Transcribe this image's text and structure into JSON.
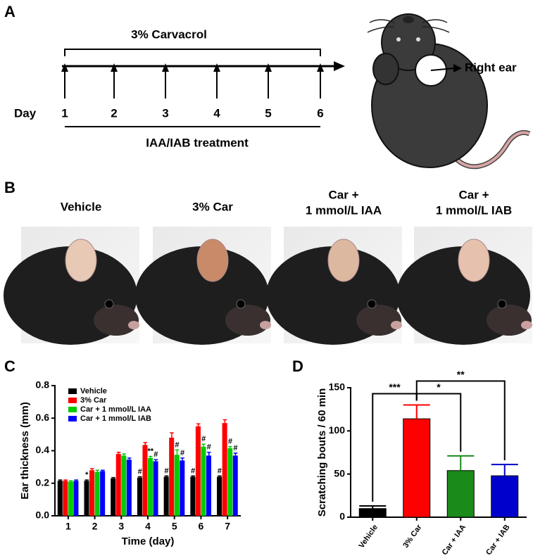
{
  "panel_a": {
    "letter": "A",
    "top_label": "3% Carvacrol",
    "day_label": "Day",
    "days": [
      "1",
      "2",
      "3",
      "4",
      "5",
      "6"
    ],
    "bottom_label": "IAA/IAB treatment",
    "ear_label": "Right ear"
  },
  "panel_b": {
    "letter": "B",
    "groups": [
      [
        "Vehicle"
      ],
      [
        "3% Car"
      ],
      [
        "Car +",
        "1 mmol/L IAA"
      ],
      [
        "Car +",
        "1 mmol/L IAB"
      ]
    ]
  },
  "chart_data": [
    {
      "panel": "C",
      "type": "bar",
      "ylabel": "Ear thickness (mm)",
      "xlabel": "Time (day)",
      "categories": [
        "1",
        "2",
        "3",
        "4",
        "5",
        "6",
        "7"
      ],
      "ylim": [
        0,
        0.8
      ],
      "yticks": [
        {
          "value": 0,
          "label": "0.0"
        },
        0.2,
        0.4,
        0.6,
        0.8
      ],
      "series": [
        {
          "name": "Vehicle",
          "color": "#000000",
          "values": [
            0.215,
            0.215,
            0.23,
            0.235,
            0.24,
            0.24,
            0.24
          ],
          "errors": [
            0.005,
            0.005,
            0.005,
            0.005,
            0.005,
            0.005,
            0.005
          ],
          "marks": [
            null,
            "*",
            null,
            "#",
            "#",
            "#",
            "#"
          ]
        },
        {
          "name": "3% Car",
          "color": "#ff0000",
          "values": [
            0.215,
            0.28,
            0.38,
            0.435,
            0.48,
            0.55,
            0.57
          ],
          "errors": [
            0.005,
            0.01,
            0.01,
            0.015,
            0.03,
            0.015,
            0.02
          ],
          "marks": [
            null,
            null,
            null,
            null,
            null,
            null,
            null
          ]
        },
        {
          "name": "Car + 1 mmol/L IAA",
          "color": "#00cc00",
          "values": [
            0.21,
            0.27,
            0.37,
            0.355,
            0.375,
            0.425,
            0.415
          ],
          "errors": [
            0.005,
            0.01,
            0.01,
            0.01,
            0.03,
            0.015,
            0.01
          ],
          "marks": [
            null,
            null,
            null,
            "**",
            "#",
            "#",
            "#"
          ]
        },
        {
          "name": "Car + 1 mmol/L IAB",
          "color": "#0000ff",
          "values": [
            0.215,
            0.275,
            0.345,
            0.335,
            0.34,
            0.37,
            0.37
          ],
          "errors": [
            0.005,
            0.005,
            0.01,
            0.01,
            0.015,
            0.02,
            0.015
          ],
          "marks": [
            null,
            null,
            null,
            "#",
            "#",
            "#",
            "#"
          ]
        }
      ]
    },
    {
      "panel": "D",
      "type": "bar",
      "ylabel": "Scratching bouts / 60 min",
      "categories": [
        "Vehicle",
        "3% Car",
        "Car + IAA",
        "Car + IAB"
      ],
      "colors": [
        "#000000",
        "#ff0000",
        "#1a8a1a",
        "#0000cc"
      ],
      "values": [
        10,
        114,
        54,
        48
      ],
      "errors": [
        3,
        16,
        17,
        13
      ],
      "ylim": [
        0,
        150
      ],
      "yticks": [
        0,
        50,
        100,
        150
      ],
      "comparisons": [
        {
          "pair": [
            "Vehicle",
            "3% Car"
          ],
          "label": "***"
        },
        {
          "pair": [
            "3% Car",
            "Car + IAA"
          ],
          "label": "*"
        },
        {
          "pair": [
            "3% Car",
            "Car + IAB"
          ],
          "label": "**"
        }
      ]
    }
  ]
}
